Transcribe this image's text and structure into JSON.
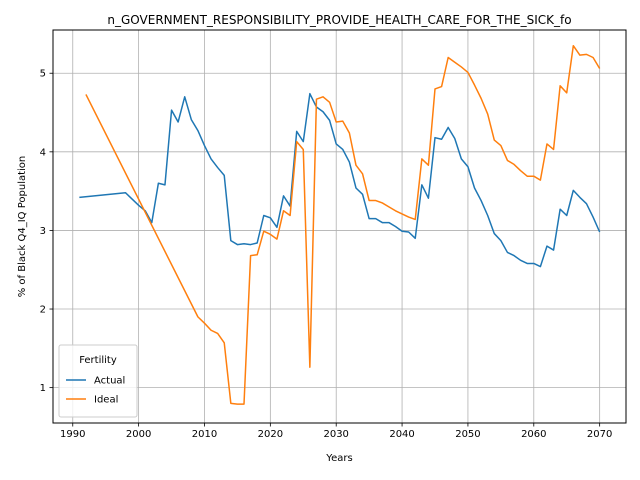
{
  "chart_data": {
    "type": "line",
    "title": "n_GOVERNMENT_RESPONSIBILITY_PROVIDE_HEALTH_CARE_FOR_THE_SICK_fo",
    "xlabel": "Years",
    "ylabel": "% of Black Q4_IQ Population",
    "xlim": [
      1987,
      2074
    ],
    "ylim": [
      0.55,
      5.55
    ],
    "xticks": [
      1990,
      2000,
      2010,
      2020,
      2030,
      2040,
      2050,
      2060,
      2070
    ],
    "yticks": [
      1,
      2,
      3,
      4,
      5
    ],
    "grid": true,
    "legend": {
      "title": "Fertility",
      "placement": "lower-left"
    },
    "series": [
      {
        "name": "Actual",
        "color": "#1f77b4",
        "points": [
          [
            1991,
            3.42
          ],
          [
            1998,
            3.48
          ],
          [
            2000,
            3.32
          ],
          [
            2001,
            3.25
          ],
          [
            2002,
            3.1
          ],
          [
            2003,
            3.6
          ],
          [
            2004,
            3.58
          ],
          [
            2005,
            4.53
          ],
          [
            2006,
            4.38
          ],
          [
            2007,
            4.7
          ],
          [
            2008,
            4.41
          ],
          [
            2009,
            4.27
          ],
          [
            2010,
            4.08
          ],
          [
            2011,
            3.91
          ],
          [
            2012,
            3.8
          ],
          [
            2013,
            3.7
          ],
          [
            2014,
            2.87
          ],
          [
            2015,
            2.82
          ],
          [
            2016,
            2.83
          ],
          [
            2017,
            2.82
          ],
          [
            2018,
            2.84
          ],
          [
            2019,
            3.19
          ],
          [
            2020,
            3.16
          ],
          [
            2021,
            3.04
          ],
          [
            2022,
            3.44
          ],
          [
            2023,
            3.31
          ],
          [
            2024,
            4.26
          ],
          [
            2025,
            4.13
          ],
          [
            2026,
            4.74
          ],
          [
            2027,
            4.57
          ],
          [
            2028,
            4.51
          ],
          [
            2029,
            4.4
          ],
          [
            2030,
            4.1
          ],
          [
            2031,
            4.03
          ],
          [
            2032,
            3.87
          ],
          [
            2033,
            3.54
          ],
          [
            2034,
            3.46
          ],
          [
            2035,
            3.15
          ],
          [
            2036,
            3.15
          ],
          [
            2037,
            3.1
          ],
          [
            2038,
            3.1
          ],
          [
            2039,
            3.05
          ],
          [
            2040,
            2.99
          ],
          [
            2041,
            2.98
          ],
          [
            2042,
            2.9
          ],
          [
            2043,
            3.58
          ],
          [
            2044,
            3.41
          ],
          [
            2045,
            4.18
          ],
          [
            2046,
            4.16
          ],
          [
            2047,
            4.31
          ],
          [
            2048,
            4.17
          ],
          [
            2049,
            3.91
          ],
          [
            2050,
            3.81
          ],
          [
            2051,
            3.54
          ],
          [
            2052,
            3.38
          ],
          [
            2053,
            3.19
          ],
          [
            2054,
            2.96
          ],
          [
            2055,
            2.87
          ],
          [
            2056,
            2.72
          ],
          [
            2057,
            2.68
          ],
          [
            2058,
            2.62
          ],
          [
            2059,
            2.58
          ],
          [
            2060,
            2.58
          ],
          [
            2061,
            2.54
          ],
          [
            2062,
            2.8
          ],
          [
            2063,
            2.75
          ],
          [
            2064,
            3.27
          ],
          [
            2065,
            3.19
          ],
          [
            2066,
            3.51
          ],
          [
            2067,
            3.42
          ],
          [
            2068,
            3.34
          ],
          [
            2069,
            3.17
          ],
          [
            2070,
            2.98
          ]
        ]
      },
      {
        "name": "Ideal",
        "color": "#ff7f0e",
        "points": [
          [
            1992,
            4.73
          ],
          [
            2009,
            1.9
          ],
          [
            2010,
            1.82
          ],
          [
            2011,
            1.73
          ],
          [
            2012,
            1.69
          ],
          [
            2013,
            1.57
          ],
          [
            2014,
            0.8
          ],
          [
            2015,
            0.79
          ],
          [
            2016,
            0.79
          ],
          [
            2017,
            2.68
          ],
          [
            2018,
            2.69
          ],
          [
            2019,
            2.99
          ],
          [
            2020,
            2.95
          ],
          [
            2021,
            2.89
          ],
          [
            2022,
            3.25
          ],
          [
            2023,
            3.19
          ],
          [
            2024,
            4.13
          ],
          [
            2025,
            4.03
          ],
          [
            2026,
            1.26
          ],
          [
            2027,
            4.67
          ],
          [
            2028,
            4.7
          ],
          [
            2029,
            4.63
          ],
          [
            2030,
            4.38
          ],
          [
            2031,
            4.39
          ],
          [
            2032,
            4.24
          ],
          [
            2033,
            3.83
          ],
          [
            2034,
            3.72
          ],
          [
            2035,
            3.38
          ],
          [
            2036,
            3.38
          ],
          [
            2037,
            3.35
          ],
          [
            2038,
            3.3
          ],
          [
            2039,
            3.25
          ],
          [
            2040,
            3.21
          ],
          [
            2041,
            3.17
          ],
          [
            2042,
            3.14
          ],
          [
            2043,
            3.91
          ],
          [
            2044,
            3.83
          ],
          [
            2045,
            4.8
          ],
          [
            2046,
            4.83
          ],
          [
            2047,
            5.2
          ],
          [
            2048,
            5.14
          ],
          [
            2049,
            5.08
          ],
          [
            2050,
            5.01
          ],
          [
            2051,
            4.85
          ],
          [
            2052,
            4.68
          ],
          [
            2053,
            4.48
          ],
          [
            2054,
            4.15
          ],
          [
            2055,
            4.08
          ],
          [
            2056,
            3.89
          ],
          [
            2057,
            3.84
          ],
          [
            2058,
            3.76
          ],
          [
            2059,
            3.69
          ],
          [
            2060,
            3.69
          ],
          [
            2061,
            3.64
          ],
          [
            2062,
            4.1
          ],
          [
            2063,
            4.03
          ],
          [
            2064,
            4.84
          ],
          [
            2065,
            4.75
          ],
          [
            2066,
            5.35
          ],
          [
            2067,
            5.23
          ],
          [
            2068,
            5.24
          ],
          [
            2069,
            5.2
          ],
          [
            2070,
            5.06
          ]
        ]
      }
    ]
  }
}
